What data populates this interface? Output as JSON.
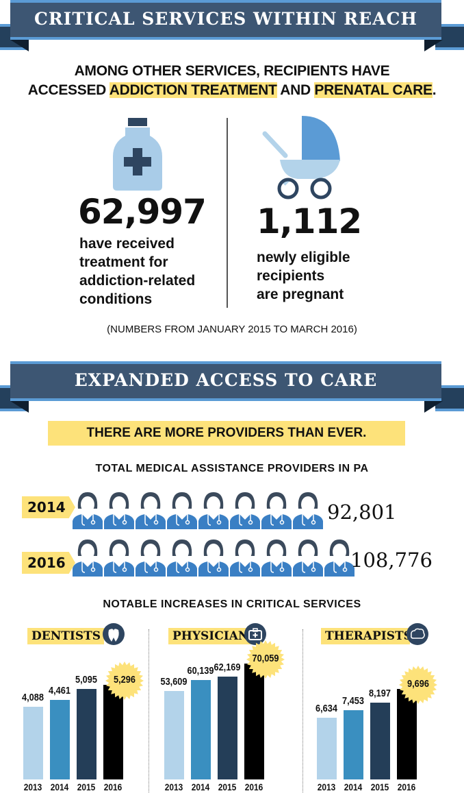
{
  "section1": {
    "title": "CRITICAL SERVICES WITHIN REACH"
  },
  "headline": {
    "line1": "AMONG OTHER SERVICES, RECIPIENTS HAVE",
    "pre": "ACCESSED ",
    "hl1": "ADDICTION TREATMENT",
    "mid": " AND ",
    "hl2": "PRENATAL CARE",
    "end": "."
  },
  "stats": [
    {
      "value": "62,997",
      "lines": [
        "have received",
        "treatment for",
        "addiction-related",
        "conditions"
      ],
      "icon": "medicine-bottle-icon"
    },
    {
      "value": "1,112",
      "lines": [
        "newly eligible",
        "recipients",
        "are pregnant"
      ],
      "icon": "stroller-icon"
    }
  ],
  "note": "(NUMBERS FROM JANUARY 2015 TO MARCH 2016)",
  "section2": {
    "title": "EXPANDED ACCESS TO CARE"
  },
  "callout": "THERE ARE MORE PROVIDERS THAN EVER.",
  "providers": {
    "title": "TOTAL MEDICAL ASSISTANCE PROVIDERS IN PA",
    "rows": [
      {
        "year": "2014",
        "value": "92,801",
        "icon_count": 8
      },
      {
        "year": "2016",
        "value": "108,776",
        "icon_count": 9
      }
    ]
  },
  "increases_title": "NOTABLE INCREASES IN CRITICAL SERVICES",
  "colors": {
    "2013": "#b3d3ea",
    "2014": "#3a8fc0",
    "2015": "#243e58",
    "2016": "#000000",
    "highlight": "#fde27a",
    "banner": "#3d5673"
  },
  "chart_data": [
    {
      "type": "bar",
      "title": "DENTISTS",
      "icon": "tooth-icon",
      "categories": [
        "2013",
        "2014",
        "2015",
        "2016"
      ],
      "values": [
        4088,
        4461,
        5095,
        5296
      ],
      "labels": [
        "4,088",
        "4,461",
        "5,095",
        "5,296"
      ],
      "ylim": [
        0,
        7700
      ]
    },
    {
      "type": "bar",
      "title": "PHYSICIANS",
      "icon": "medical-kit-icon",
      "categories": [
        "2013",
        "2014",
        "2015",
        "2016"
      ],
      "values": [
        53609,
        60139,
        62169,
        70059
      ],
      "labels": [
        "53,609",
        "60,139",
        "62,169",
        "70,059"
      ],
      "ylim": [
        0,
        83000
      ]
    },
    {
      "type": "bar",
      "title": "THERAPISTS",
      "icon": "brain-icon",
      "categories": [
        "2013",
        "2014",
        "2015",
        "2016"
      ],
      "values": [
        6634,
        7453,
        8197,
        9696
      ],
      "labels": [
        "6,634",
        "7,453",
        "8,197",
        "9,696"
      ],
      "ylim": [
        0,
        14700
      ]
    }
  ]
}
